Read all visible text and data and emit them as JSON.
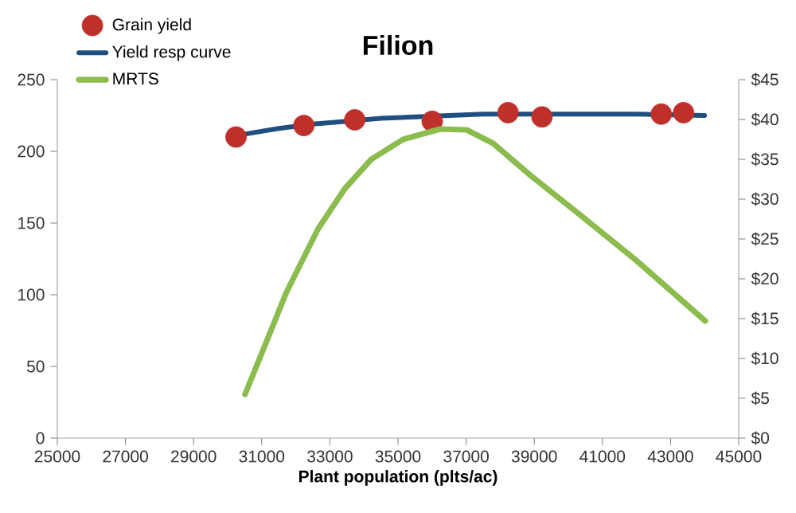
{
  "chart_data": {
    "type": "line",
    "title": "Filion",
    "xlabel": "Plant population (plts/ac)",
    "xlim": [
      25000,
      45000
    ],
    "xticks": [
      25000,
      27000,
      29000,
      31000,
      33000,
      35000,
      37000,
      39000,
      41000,
      43000,
      45000
    ],
    "ylim": [
      0,
      250
    ],
    "yticks": [
      0,
      50,
      100,
      150,
      200,
      250
    ],
    "y2lim": [
      0,
      45
    ],
    "y2ticks": [
      {
        "value": 0,
        "label": "$0"
      },
      {
        "value": 5,
        "label": "$5"
      },
      {
        "value": 10,
        "label": "$10"
      },
      {
        "value": 15,
        "label": "$15"
      },
      {
        "value": 20,
        "label": "$20"
      },
      {
        "value": 25,
        "label": "$25"
      },
      {
        "value": 30,
        "label": "$30"
      },
      {
        "value": 35,
        "label": "$35"
      },
      {
        "value": 40,
        "label": "$40"
      },
      {
        "value": 45,
        "label": "$45"
      }
    ],
    "grid": false,
    "legend": "top left",
    "series": [
      {
        "name": "Grain yield",
        "type": "scatter",
        "marker": "circle",
        "color": "#c0302b",
        "x": [
          30245,
          32237,
          33731,
          36004,
          38230,
          39226,
          42728,
          43381
        ],
        "values": [
          210,
          218,
          222,
          221,
          227,
          224,
          226,
          227
        ]
      },
      {
        "name": "Yield resp curve",
        "color": "#1f4e80",
        "x": [
          30500,
          31500,
          32500,
          33500,
          34500,
          35500,
          36500,
          37500,
          38500,
          40000,
          42000,
          44000
        ],
        "values": [
          212,
          216,
          219,
          221,
          223,
          224,
          225,
          226,
          226,
          226,
          226,
          225
        ]
      },
      {
        "name": "MRTS",
        "axis": "y2",
        "color": "#8cbb4e",
        "x": [
          30510,
          31100,
          31724,
          32658,
          33436,
          34214,
          35148,
          36237,
          37016,
          37794,
          38883,
          40440,
          41996,
          44019
        ],
        "values": [
          5.5,
          11.7,
          18.3,
          26.3,
          31.3,
          35,
          37.5,
          38.8,
          38.7,
          37,
          33,
          27.7,
          22.3,
          14.7
        ]
      }
    ]
  }
}
